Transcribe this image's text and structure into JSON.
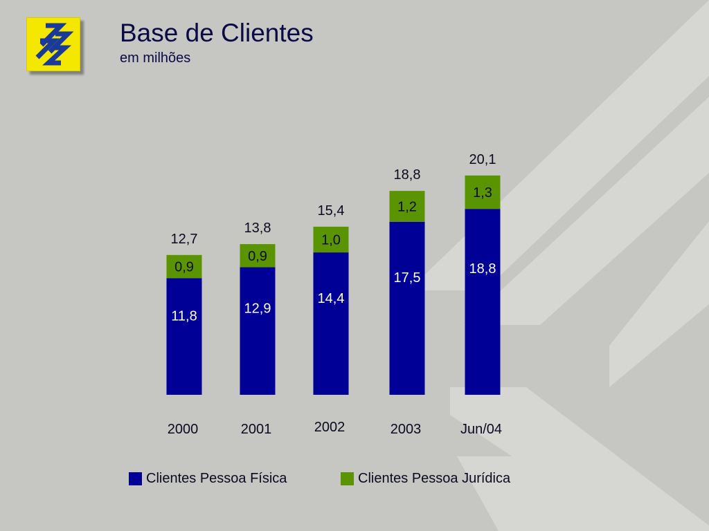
{
  "header": {
    "title": "Base de Clientes",
    "subtitle": "em milhões"
  },
  "colors": {
    "background": "#c6c6c2",
    "pattern": "#d6d6d3",
    "logo_yellow": "#f4e800",
    "logo_blue": "#1a3a9a"
  },
  "icons": {
    "logo": "banco-do-brasil-logo-icon"
  },
  "chart_data": {
    "type": "bar",
    "stacked": true,
    "categories": [
      "2000",
      "2001",
      "2002",
      "2003",
      "Jun/04"
    ],
    "series": [
      {
        "name": "Clientes Pessoa Física",
        "color": "#000096",
        "values": [
          11.8,
          12.9,
          14.4,
          17.5,
          18.8
        ],
        "labels": [
          "11,8",
          "12,9",
          "14,4",
          "17,5",
          "18,8"
        ]
      },
      {
        "name": "Clientes Pessoa Jurídica",
        "color": "#5a9400",
        "values": [
          0.9,
          0.9,
          1.0,
          1.2,
          1.3
        ],
        "labels": [
          "0,9",
          "0,9",
          "1,0",
          "1,2",
          "1,3"
        ]
      }
    ],
    "totals": [
      12.7,
      13.8,
      15.4,
      18.8,
      20.1
    ],
    "total_labels": [
      "12,7",
      "13,8",
      "15,4",
      "18,8",
      "20,1"
    ],
    "ylim": [
      0,
      21
    ],
    "grid": false,
    "legend_position": "bottom"
  }
}
